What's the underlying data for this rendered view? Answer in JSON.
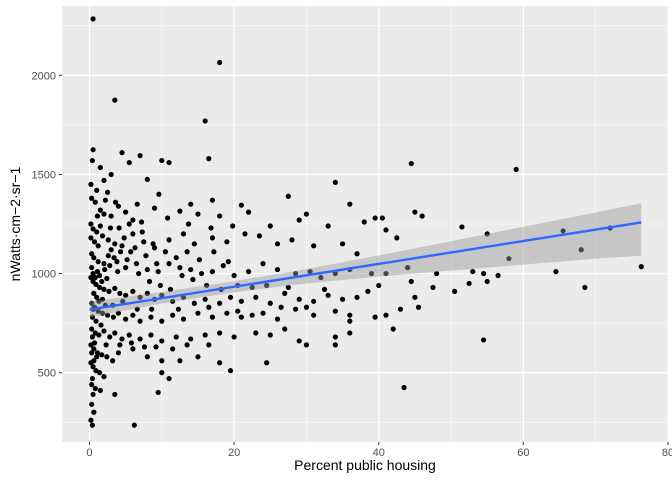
{
  "chart_data": {
    "type": "scatter",
    "xlabel": "Percent public housing",
    "ylabel": "nWatts·cm−2·sr−1",
    "xlim": [
      -3.8,
      80
    ],
    "ylim": [
      150,
      2350
    ],
    "x_ticks": [
      0,
      20,
      40,
      60,
      80
    ],
    "y_ticks": [
      500,
      1000,
      1500,
      2000
    ],
    "grid": true,
    "legend": "none",
    "colors": {
      "panel": "#ebebeb",
      "grid": "#ffffff",
      "points": "#000000",
      "trend": "#3366ff",
      "ribbon": "#999999"
    },
    "trend_line": {
      "method": "lm",
      "x": [
        0,
        76.3
      ],
      "y": [
        818,
        1258
      ]
    },
    "confidence_band": {
      "x": [
        0,
        10,
        20,
        30,
        40,
        50,
        60,
        70,
        76.3
      ],
      "lower": [
        778,
        849,
        905,
        950,
        985,
        1015,
        1045,
        1075,
        1090
      ],
      "upper": [
        858,
        907,
        961,
        1023,
        1091,
        1163,
        1236,
        1308,
        1355
      ]
    },
    "points": [
      [
        0.5,
        2285
      ],
      [
        18,
        2065
      ],
      [
        3.5,
        1875
      ],
      [
        16,
        1770
      ],
      [
        0.5,
        1625
      ],
      [
        16.5,
        1580
      ],
      [
        4.5,
        1610
      ],
      [
        7,
        1595
      ],
      [
        10,
        1570
      ],
      [
        11,
        1560
      ],
      [
        1.5,
        1535
      ],
      [
        5.5,
        1560
      ],
      [
        3,
        1500
      ],
      [
        2,
        1470
      ],
      [
        1,
        1420
      ],
      [
        8,
        1475
      ],
      [
        2.5,
        1410
      ],
      [
        34,
        1460
      ],
      [
        44.5,
        1555
      ],
      [
        59,
        1525
      ],
      [
        0.3,
        1380
      ],
      [
        0.8,
        1360
      ],
      [
        1.5,
        1320
      ],
      [
        2,
        1300
      ],
      [
        3,
        1290
      ],
      [
        4,
        1340
      ],
      [
        5,
        1310
      ],
      [
        6,
        1270
      ],
      [
        9,
        1330
      ],
      [
        12.5,
        1315
      ],
      [
        14,
        1350
      ],
      [
        15,
        1300
      ],
      [
        17,
        1370
      ],
      [
        18,
        1290
      ],
      [
        21,
        1345
      ],
      [
        22,
        1310
      ],
      [
        27.5,
        1390
      ],
      [
        30,
        1300
      ],
      [
        33,
        1240
      ],
      [
        36,
        1350
      ],
      [
        38,
        1260
      ],
      [
        39.5,
        1280
      ],
      [
        40.5,
        1280
      ],
      [
        41,
        1220
      ],
      [
        45,
        1310
      ],
      [
        46,
        1290
      ],
      [
        51.5,
        1235
      ],
      [
        55,
        1200
      ],
      [
        65.5,
        1215
      ],
      [
        72,
        1230
      ],
      [
        0.2,
        1250
      ],
      [
        0.5,
        1225
      ],
      [
        1,
        1210
      ],
      [
        1.8,
        1190
      ],
      [
        2.6,
        1170
      ],
      [
        3.5,
        1150
      ],
      [
        4.5,
        1140
      ],
      [
        6,
        1200
      ],
      [
        7.5,
        1160
      ],
      [
        9,
        1130
      ],
      [
        11,
        1170
      ],
      [
        13,
        1200
      ],
      [
        14.5,
        1150
      ],
      [
        17,
        1180
      ],
      [
        19,
        1160
      ],
      [
        21.5,
        1200
      ],
      [
        23.5,
        1190
      ],
      [
        26,
        1150
      ],
      [
        28,
        1170
      ],
      [
        31,
        1140
      ],
      [
        35,
        1150
      ],
      [
        37,
        1100
      ],
      [
        42.5,
        1180
      ],
      [
        0.3,
        1100
      ],
      [
        0.6,
        1080
      ],
      [
        1.2,
        1060
      ],
      [
        2,
        1050
      ],
      [
        2.8,
        1040
      ],
      [
        3.8,
        1060
      ],
      [
        5,
        1030
      ],
      [
        6.5,
        1050
      ],
      [
        8,
        1020
      ],
      [
        9.5,
        1010
      ],
      [
        11,
        1050
      ],
      [
        12.5,
        1030
      ],
      [
        14,
        1020
      ],
      [
        15.5,
        1000
      ],
      [
        17,
        1010
      ],
      [
        18.5,
        1040
      ],
      [
        20,
        990
      ],
      [
        22,
        1010
      ],
      [
        24,
        1050
      ],
      [
        26,
        1020
      ],
      [
        28.5,
        1000
      ],
      [
        30.5,
        1010
      ],
      [
        32,
        980
      ],
      [
        34,
        1000
      ],
      [
        36,
        1020
      ],
      [
        39,
        1000
      ],
      [
        41,
        1000
      ],
      [
        44,
        1030
      ],
      [
        48,
        1000
      ],
      [
        53,
        1010
      ],
      [
        54.5,
        1000
      ],
      [
        56.5,
        990
      ],
      [
        58,
        1075
      ],
      [
        64.5,
        1010
      ],
      [
        68,
        1120
      ],
      [
        76.3,
        1035
      ],
      [
        0.2,
        980
      ],
      [
        0.5,
        960
      ],
      [
        0.9,
        945
      ],
      [
        1.4,
        930
      ],
      [
        2,
        920
      ],
      [
        2.7,
        910
      ],
      [
        3.5,
        925
      ],
      [
        4.2,
        900
      ],
      [
        5,
        890
      ],
      [
        6,
        910
      ],
      [
        7,
        880
      ],
      [
        8,
        900
      ],
      [
        9,
        870
      ],
      [
        10,
        890
      ],
      [
        11.5,
        860
      ],
      [
        13,
        880
      ],
      [
        14.5,
        850
      ],
      [
        16,
        870
      ],
      [
        18,
        850
      ],
      [
        19.5,
        880
      ],
      [
        21,
        860
      ],
      [
        23,
        880
      ],
      [
        25,
        850
      ],
      [
        27,
        900
      ],
      [
        29,
        870
      ],
      [
        31,
        860
      ],
      [
        33,
        890
      ],
      [
        35,
        870
      ],
      [
        37,
        880
      ],
      [
        40,
        940
      ],
      [
        44.5,
        960
      ],
      [
        47.5,
        930
      ],
      [
        50.5,
        910
      ],
      [
        52.5,
        950
      ],
      [
        55,
        960
      ],
      [
        68.5,
        930
      ],
      [
        0.3,
        850
      ],
      [
        0.7,
        830
      ],
      [
        1.2,
        810
      ],
      [
        1.8,
        800
      ],
      [
        2.5,
        790
      ],
      [
        3.3,
        780
      ],
      [
        4,
        800
      ],
      [
        5,
        770
      ],
      [
        6,
        790
      ],
      [
        7,
        760
      ],
      [
        8.5,
        780
      ],
      [
        10,
        760
      ],
      [
        11.5,
        790
      ],
      [
        13,
        770
      ],
      [
        15,
        800
      ],
      [
        17,
        780
      ],
      [
        19,
        800
      ],
      [
        21,
        780
      ],
      [
        24,
        800
      ],
      [
        26,
        770
      ],
      [
        28.5,
        820
      ],
      [
        31,
        790
      ],
      [
        34,
        810
      ],
      [
        36,
        790
      ],
      [
        39.5,
        780
      ],
      [
        41,
        790
      ],
      [
        43,
        820
      ],
      [
        45.5,
        830
      ],
      [
        0.3,
        720
      ],
      [
        0.8,
        700
      ],
      [
        1.3,
        690
      ],
      [
        2,
        710
      ],
      [
        2.8,
        680
      ],
      [
        3.5,
        700
      ],
      [
        4.5,
        670
      ],
      [
        5.5,
        690
      ],
      [
        7,
        670
      ],
      [
        8.5,
        690
      ],
      [
        10,
        660
      ],
      [
        12,
        680
      ],
      [
        14,
        670
      ],
      [
        16,
        690
      ],
      [
        18,
        700
      ],
      [
        20,
        680
      ],
      [
        23,
        700
      ],
      [
        25,
        690
      ],
      [
        27,
        720
      ],
      [
        29,
        660
      ],
      [
        30,
        640
      ],
      [
        34,
        680
      ],
      [
        36,
        700
      ],
      [
        42,
        720
      ],
      [
        0.2,
        640
      ],
      [
        0.6,
        620
      ],
      [
        1.1,
        600
      ],
      [
        1.7,
        590
      ],
      [
        2.4,
        580
      ],
      [
        3.2,
        560
      ],
      [
        4,
        600
      ],
      [
        6,
        620
      ],
      [
        8,
        580
      ],
      [
        10,
        560
      ],
      [
        12.5,
        560
      ],
      [
        15,
        580
      ],
      [
        18,
        550
      ],
      [
        24.5,
        550
      ],
      [
        34,
        640
      ],
      [
        54.5,
        665
      ],
      [
        0.2,
        550
      ],
      [
        0.5,
        530
      ],
      [
        0.9,
        510
      ],
      [
        1.4,
        500
      ],
      [
        2,
        480
      ],
      [
        0.4,
        470
      ],
      [
        0.3,
        440
      ],
      [
        0.8,
        420
      ],
      [
        1.5,
        410
      ],
      [
        0.5,
        390
      ],
      [
        3.5,
        390
      ],
      [
        9.5,
        400
      ],
      [
        10,
        500
      ],
      [
        11,
        470
      ],
      [
        19.5,
        510
      ],
      [
        43.5,
        425
      ],
      [
        0.3,
        340
      ],
      [
        0.6,
        300
      ],
      [
        0.2,
        260
      ],
      [
        0.4,
        235
      ],
      [
        6.2,
        235
      ],
      [
        0.5,
        1000
      ],
      [
        0.8,
        980
      ],
      [
        1.1,
        1010
      ],
      [
        1.4,
        990
      ],
      [
        1.7,
        960
      ],
      [
        2.1,
        1020
      ],
      [
        2.4,
        975
      ],
      [
        0.6,
        900
      ],
      [
        1,
        880
      ],
      [
        1.3,
        860
      ],
      [
        0.4,
        780
      ],
      [
        0.9,
        760
      ],
      [
        1.6,
        740
      ],
      [
        0.2,
        1180
      ],
      [
        0.7,
        1160
      ],
      [
        1.2,
        1140
      ],
      [
        0.3,
        1030
      ],
      [
        0.5,
        820
      ],
      [
        0.4,
        680
      ],
      [
        0.7,
        650
      ],
      [
        1.0,
        580
      ],
      [
        0.3,
        600
      ],
      [
        0.6,
        560
      ],
      [
        1.8,
        870
      ],
      [
        2.2,
        840
      ],
      [
        2.6,
        1090
      ],
      [
        3.0,
        1120
      ],
      [
        3.4,
        1080
      ],
      [
        3.9,
        1010
      ],
      [
        4.3,
        1110
      ],
      [
        4.8,
        1180
      ],
      [
        5.2,
        1070
      ],
      [
        5.7,
        1110
      ],
      [
        6.3,
        1130
      ],
      [
        6.8,
        1000
      ],
      [
        7.3,
        1210
      ],
      [
        7.8,
        1090
      ],
      [
        8.3,
        960
      ],
      [
        8.8,
        1150
      ],
      [
        9.3,
        1050
      ],
      [
        9.8,
        940
      ],
      [
        10.5,
        1110
      ],
      [
        11.2,
        920
      ],
      [
        12,
        1080
      ],
      [
        12.8,
        990
      ],
      [
        13.5,
        1110
      ],
      [
        14.3,
        970
      ],
      [
        15.2,
        1070
      ],
      [
        16.2,
        940
      ],
      [
        17.2,
        1110
      ],
      [
        18.2,
        920
      ],
      [
        19.2,
        1060
      ],
      [
        20.5,
        940
      ],
      [
        22.5,
        930
      ],
      [
        24.5,
        940
      ],
      [
        27.5,
        930
      ],
      [
        32.5,
        920
      ],
      [
        38.5,
        910
      ],
      [
        45,
        880
      ],
      [
        3.2,
        840
      ],
      [
        4.6,
        860
      ],
      [
        6.6,
        820
      ],
      [
        8.6,
        820
      ],
      [
        12.3,
        820
      ],
      [
        16.5,
        830
      ],
      [
        20.5,
        810
      ],
      [
        22.5,
        790
      ],
      [
        26.5,
        830
      ],
      [
        30,
        830
      ],
      [
        36,
        760
      ],
      [
        2.3,
        640
      ],
      [
        4.2,
        640
      ],
      [
        5.8,
        650
      ],
      [
        7.6,
        630
      ],
      [
        9.2,
        630
      ],
      [
        11.5,
        620
      ],
      [
        13.5,
        640
      ],
      [
        16.5,
        640
      ],
      [
        1.1,
        1290
      ],
      [
        1.5,
        1240
      ],
      [
        2.9,
        1230
      ],
      [
        4.1,
        1230
      ],
      [
        5.5,
        1250
      ],
      [
        7.2,
        1260
      ],
      [
        10.8,
        1280
      ],
      [
        13.7,
        1250
      ],
      [
        16.8,
        1230
      ],
      [
        19.8,
        1240
      ],
      [
        25,
        1240
      ],
      [
        29,
        1270
      ],
      [
        2.2,
        1370
      ],
      [
        3.6,
        1360
      ],
      [
        6.6,
        1350
      ],
      [
        9.6,
        1400
      ],
      [
        0.2,
        1450
      ],
      [
        0.4,
        1570
      ]
    ]
  }
}
